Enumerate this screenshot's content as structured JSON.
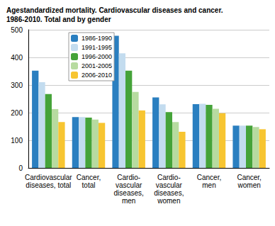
{
  "chart_data": {
    "type": "bar",
    "title": "Agestandardized mortality. Cardiovascular diseases and cancer.\n1986-2010. Total and by gender",
    "categories": [
      "Cardiovascular\ndiseases, total",
      "Cancer,\ntotal",
      "Cardio-\nvascular\ndiseases,\nmen",
      "Cardio-\nvascular\ndiseases,\nwomen",
      "Cancer,\nmen",
      "Cancer,\nwomen"
    ],
    "series": [
      {
        "name": "1986-1990",
        "color": "#2a7fc0",
        "values": [
          352,
          184,
          478,
          255,
          231,
          153
        ]
      },
      {
        "name": "1991-1995",
        "color": "#c3dcef",
        "values": [
          310,
          184,
          415,
          230,
          232,
          153
        ]
      },
      {
        "name": "1996-2000",
        "color": "#45a339",
        "values": [
          267,
          182,
          352,
          202,
          228,
          153
        ]
      },
      {
        "name": "2001-2005",
        "color": "#b7dba0",
        "values": [
          213,
          175,
          275,
          166,
          214,
          148
        ]
      },
      {
        "name": "2006-2010",
        "color": "#f7c531",
        "values": [
          166,
          163,
          208,
          131,
          198,
          140
        ]
      }
    ],
    "ylim": [
      0,
      500
    ],
    "yticks": [
      0,
      100,
      200,
      300,
      400,
      500
    ],
    "grid": true,
    "legend": "upper left"
  }
}
